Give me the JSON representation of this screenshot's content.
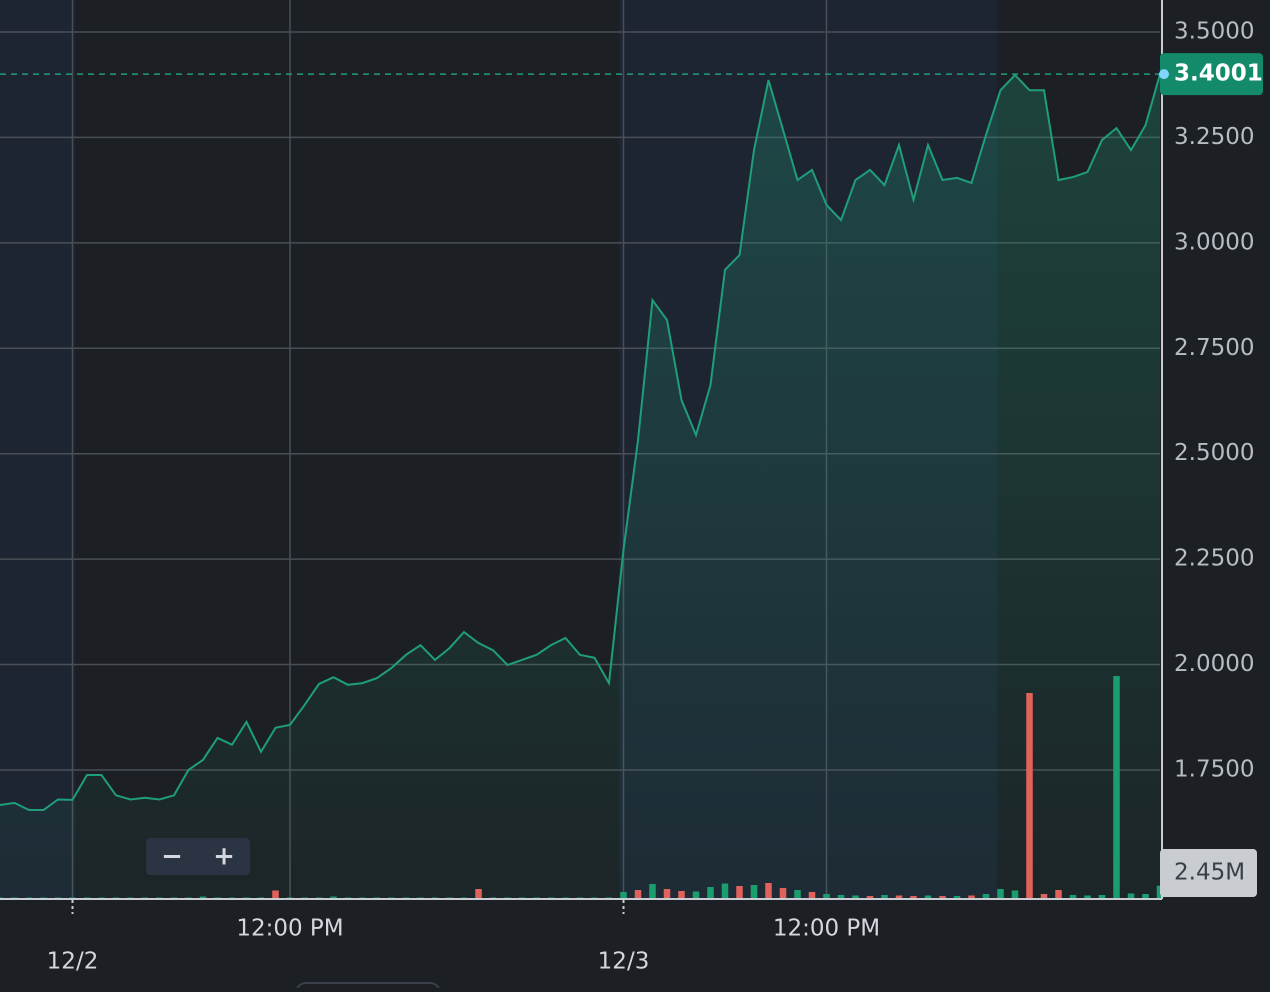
{
  "chart_data": {
    "type": "line",
    "categories": [
      null,
      null,
      null,
      null,
      null,
      null,
      null,
      null,
      null,
      null,
      null,
      null,
      null,
      null,
      null,
      null,
      null,
      null,
      null,
      null,
      "12:00 PM",
      null,
      null,
      null,
      null,
      null,
      null,
      null,
      null,
      null,
      null,
      null,
      null,
      null,
      null,
      null,
      null,
      null,
      null,
      null,
      null,
      null,
      null,
      null,
      null,
      null,
      null,
      null,
      null,
      null,
      null,
      null,
      null,
      null,
      null,
      null,
      null,
      "12:00 PM",
      null,
      null,
      null,
      null,
      null,
      null,
      null,
      null,
      null,
      null,
      null,
      null,
      null,
      null,
      null,
      null,
      null,
      null,
      null,
      null,
      null,
      null,
      null
    ],
    "dates": [
      null,
      null,
      null,
      null,
      null,
      "12/2",
      null,
      null,
      null,
      null,
      null,
      null,
      null,
      null,
      null,
      null,
      null,
      null,
      null,
      null,
      null,
      null,
      null,
      null,
      null,
      null,
      null,
      null,
      null,
      null,
      null,
      null,
      null,
      null,
      null,
      null,
      null,
      null,
      null,
      null,
      null,
      null,
      null,
      "12/3",
      null,
      null,
      null,
      null,
      null,
      null,
      null,
      null,
      null,
      null,
      null,
      null,
      null,
      null,
      null,
      null,
      null,
      null,
      null,
      null,
      null,
      null,
      null,
      null,
      null,
      null,
      null,
      null,
      null,
      null,
      null,
      null,
      null,
      null,
      null,
      null,
      null
    ],
    "series": [
      {
        "color": "#1f9e7a",
        "values": [
          1.667,
          1.672,
          1.655,
          1.655,
          1.68,
          1.679,
          1.738,
          1.738,
          1.69,
          1.68,
          1.684,
          1.68,
          1.69,
          1.75,
          1.774,
          1.826,
          1.81,
          1.864,
          1.793,
          1.85,
          1.857,
          1.904,
          1.954,
          1.97,
          1.952,
          1.956,
          1.968,
          1.992,
          2.023,
          2.046,
          2.011,
          2.039,
          2.077,
          2.051,
          2.034,
          1.999,
          2.011,
          2.023,
          2.046,
          2.063,
          2.023,
          2.016,
          1.956,
          2.272,
          2.532,
          2.864,
          2.817,
          2.627,
          2.544,
          2.663,
          2.936,
          2.971,
          3.22,
          3.386,
          3.268,
          3.149,
          3.173,
          3.09,
          3.054,
          3.149,
          3.173,
          3.137,
          3.232,
          3.102,
          3.232,
          3.149,
          3.154,
          3.142,
          3.256,
          3.362,
          3.398,
          3.362,
          3.362,
          3.149,
          3.156,
          3.168,
          3.244,
          3.272,
          3.22,
          3.279,
          3.4001
        ]
      },
      {
        "type": "bar",
        "axis": "y2",
        "values": [
          100000,
          100000,
          100000,
          100000,
          100000,
          100000,
          100000,
          100000,
          100000,
          100000,
          100000,
          100000,
          100000,
          100000,
          300000,
          100000,
          100000,
          100000,
          100000,
          1500000,
          100000,
          100000,
          100000,
          300000,
          100000,
          100000,
          100000,
          100000,
          100000,
          100000,
          100000,
          100000,
          100000,
          1800000,
          100000,
          100000,
          100000,
          100000,
          100000,
          100000,
          100000,
          100000,
          100000,
          1200000,
          1600000,
          2800000,
          1800000,
          1400000,
          1300000,
          2200000,
          2900000,
          2400000,
          2600000,
          3000000,
          2000000,
          1600000,
          1200000,
          800000,
          600000,
          500000,
          400000,
          600000,
          500000,
          400000,
          500000,
          400000,
          400000,
          500000,
          800000,
          1800000,
          1500000,
          41000000,
          800000,
          1600000,
          600000,
          500000,
          600000,
          44400000,
          900000,
          800000,
          2450000
        ],
        "colors": [
          "#1a9e6f",
          "#1a9e6f",
          "#1a9e6f",
          "#1a9e6f",
          "#1a9e6f",
          "#1a9e6f",
          "#1a9e6f",
          "#1a9e6f",
          "#1a9e6f",
          "#1a9e6f",
          "#1a9e6f",
          "#1a9e6f",
          "#1a9e6f",
          "#1a9e6f",
          "#1a9e6f",
          "#1a9e6f",
          "#1a9e6f",
          "#1a9e6f",
          "#1a9e6f",
          "#e0625a",
          "#1a9e6f",
          "#1a9e6f",
          "#1a9e6f",
          "#1a9e6f",
          "#1a9e6f",
          "#1a9e6f",
          "#1a9e6f",
          "#1a9e6f",
          "#1a9e6f",
          "#1a9e6f",
          "#1a9e6f",
          "#1a9e6f",
          "#1a9e6f",
          "#e0625a",
          "#1a9e6f",
          "#1a9e6f",
          "#1a9e6f",
          "#1a9e6f",
          "#1a9e6f",
          "#1a9e6f",
          "#1a9e6f",
          "#1a9e6f",
          "#1a9e6f",
          "#1a9e6f",
          "#e0625a",
          "#1a9e6f",
          "#e0625a",
          "#e0625a",
          "#1a9e6f",
          "#1a9e6f",
          "#1a9e6f",
          "#e0625a",
          "#1a9e6f",
          "#e0625a",
          "#e0625a",
          "#1a9e6f",
          "#e0625a",
          "#1a9e6f",
          "#1a9e6f",
          "#1a9e6f",
          "#e0625a",
          "#1a9e6f",
          "#e0625a",
          "#e0625a",
          "#1a9e6f",
          "#e0625a",
          "#1a9e6f",
          "#e0625a",
          "#1a9e6f",
          "#1a9e6f",
          "#1a9e6f",
          "#e0625a",
          "#e0625a",
          "#e0625a",
          "#1a9e6f",
          "#1a9e6f",
          "#1a9e6f",
          "#1a9e6f",
          "#1a9e6f",
          "#1a9e6f",
          "#1a9e6f"
        ]
      }
    ],
    "current_volume": {
      "value": 2450000,
      "label": "2.45M"
    },
    "ylim": [
      1.4464,
      3.5759
    ],
    "yticks": [
      {
        "value": 1.75,
        "label": "1.7500"
      },
      {
        "value": 2,
        "label": "2.0000"
      },
      {
        "value": 2.25,
        "label": "2.2500"
      },
      {
        "value": 2.5,
        "label": "2.5000"
      },
      {
        "value": 2.75,
        "label": "2.7500"
      },
      {
        "value": 3,
        "label": "3.0000"
      },
      {
        "value": 3.25,
        "label": "3.2500"
      },
      {
        "value": 3.5,
        "label": "3.5000"
      }
    ],
    "y2lim": [
      0,
      60000000
    ],
    "grid": true
  },
  "controls": [
    "−",
    "+"
  ]
}
